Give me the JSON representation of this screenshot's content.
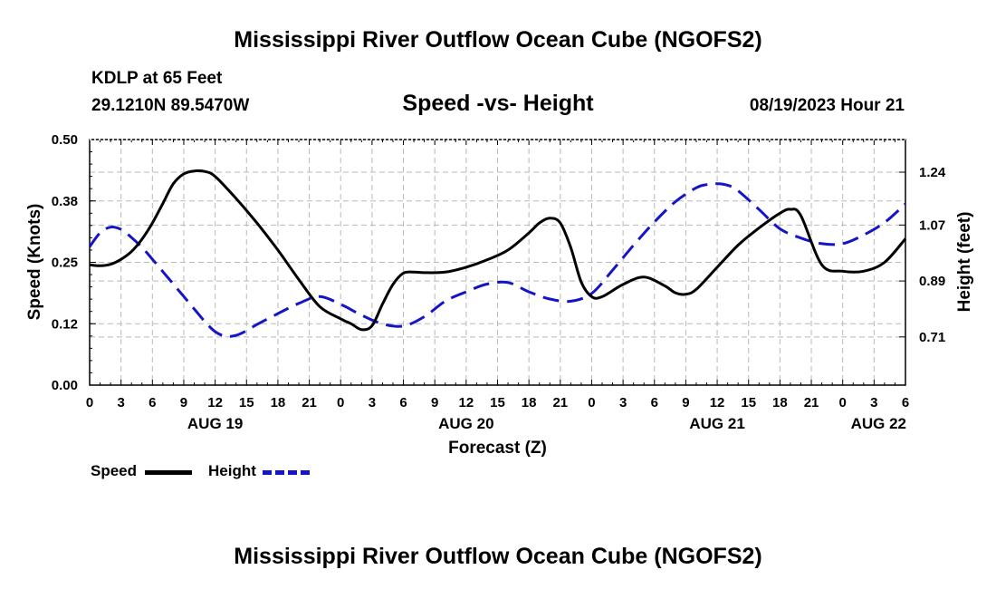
{
  "page": {
    "title": "Mississippi River Outflow Ocean Cube (NGOFS2)",
    "station_line": "KDLP at 65 Feet",
    "coords_line": "29.1210N  89.5470W",
    "datetime": "08/19/2023 Hour 21",
    "footer_title": "Mississippi River Outflow Ocean Cube (NGOFS2)"
  },
  "colors": {
    "speed": "#000000",
    "height": "#1515c8",
    "grid": "#b8b8b8"
  },
  "chart_data": {
    "type": "line",
    "title": "Speed -vs- Height",
    "xlabel": "Forecast (Z)",
    "ylabel": "Speed (Knots)",
    "y2label": "Height (feet)",
    "x_unit": "forecast hour from AUG 19 00Z",
    "xlim": [
      0,
      78
    ],
    "ylim": [
      0.0,
      0.5
    ],
    "y2lim": [
      0.555,
      1.345
    ],
    "yticks": [
      {
        "v": 0.0,
        "label": "0.00"
      },
      {
        "v": 0.125,
        "label": "0.12"
      },
      {
        "v": 0.25,
        "label": "0.25"
      },
      {
        "v": 0.375,
        "label": "0.38"
      },
      {
        "v": 0.5,
        "label": "0.50"
      }
    ],
    "y2ticks": [
      {
        "v": 0.71,
        "label": "0.71"
      },
      {
        "v": 0.89,
        "label": "0.89"
      },
      {
        "v": 1.07,
        "label": "1.07"
      },
      {
        "v": 1.24,
        "label": "1.24"
      }
    ],
    "xticks": [
      {
        "v": 0,
        "label": "0"
      },
      {
        "v": 3,
        "label": "3"
      },
      {
        "v": 6,
        "label": "6"
      },
      {
        "v": 9,
        "label": "9"
      },
      {
        "v": 12,
        "label": "12"
      },
      {
        "v": 15,
        "label": "15"
      },
      {
        "v": 18,
        "label": "18"
      },
      {
        "v": 21,
        "label": "21"
      },
      {
        "v": 24,
        "label": "0"
      },
      {
        "v": 27,
        "label": "3"
      },
      {
        "v": 30,
        "label": "6"
      },
      {
        "v": 33,
        "label": "9"
      },
      {
        "v": 36,
        "label": "12"
      },
      {
        "v": 39,
        "label": "15"
      },
      {
        "v": 42,
        "label": "18"
      },
      {
        "v": 45,
        "label": "21"
      },
      {
        "v": 48,
        "label": "0"
      },
      {
        "v": 51,
        "label": "3"
      },
      {
        "v": 54,
        "label": "6"
      },
      {
        "v": 57,
        "label": "9"
      },
      {
        "v": 60,
        "label": "12"
      },
      {
        "v": 63,
        "label": "15"
      },
      {
        "v": 66,
        "label": "18"
      },
      {
        "v": 69,
        "label": "21"
      },
      {
        "v": 72,
        "label": "0"
      },
      {
        "v": 75,
        "label": "3"
      },
      {
        "v": 78,
        "label": "6"
      }
    ],
    "day_labels": [
      {
        "v": 12,
        "label": "AUG 19"
      },
      {
        "v": 36,
        "label": "AUG 20"
      },
      {
        "v": 60,
        "label": "AUG 21"
      },
      {
        "v": 78,
        "label": "AUG 22"
      }
    ],
    "series": [
      {
        "name": "Speed",
        "axis": "left",
        "style": "solid",
        "x": [
          0,
          1,
          2,
          3,
          4,
          5,
          6,
          7,
          8,
          9,
          10,
          11,
          12,
          14,
          16,
          18,
          20,
          22,
          24,
          25,
          26,
          27,
          28,
          29,
          30,
          31,
          32,
          34,
          36,
          38,
          40,
          42,
          43,
          44,
          45,
          46,
          47,
          48,
          49,
          51,
          53,
          55,
          56,
          57,
          58,
          60,
          62,
          64,
          66,
          67,
          68,
          70,
          72,
          74,
          76,
          78
        ],
        "values": [
          0.245,
          0.243,
          0.246,
          0.256,
          0.272,
          0.297,
          0.33,
          0.37,
          0.41,
          0.43,
          0.436,
          0.435,
          0.425,
          0.38,
          0.33,
          0.275,
          0.215,
          0.16,
          0.135,
          0.125,
          0.113,
          0.121,
          0.165,
          0.205,
          0.228,
          0.23,
          0.229,
          0.23,
          0.24,
          0.255,
          0.275,
          0.31,
          0.33,
          0.34,
          0.33,
          0.28,
          0.21,
          0.18,
          0.18,
          0.205,
          0.22,
          0.202,
          0.188,
          0.185,
          0.195,
          0.24,
          0.285,
          0.32,
          0.35,
          0.358,
          0.345,
          0.245,
          0.232,
          0.232,
          0.25,
          0.298
        ]
      },
      {
        "name": "Height",
        "axis": "right",
        "style": "dashed",
        "x": [
          0,
          1,
          2,
          3,
          4,
          5,
          6,
          7,
          8,
          9,
          10,
          11,
          12,
          13,
          14,
          15,
          16,
          18,
          20,
          22,
          24,
          26,
          28,
          30,
          32,
          34,
          36,
          38,
          40,
          42,
          44,
          46,
          48,
          50,
          52,
          54,
          56,
          58,
          59,
          60,
          61,
          62,
          64,
          66,
          68,
          70,
          72,
          74,
          76,
          78
        ],
        "values": [
          1.0,
          1.045,
          1.063,
          1.056,
          1.03,
          0.998,
          0.96,
          0.92,
          0.88,
          0.84,
          0.8,
          0.76,
          0.727,
          0.712,
          0.715,
          0.73,
          0.75,
          0.785,
          0.818,
          0.84,
          0.815,
          0.78,
          0.752,
          0.745,
          0.775,
          0.825,
          0.855,
          0.88,
          0.885,
          0.855,
          0.832,
          0.825,
          0.85,
          0.925,
          1.005,
          1.08,
          1.145,
          1.19,
          1.2,
          1.203,
          1.198,
          1.18,
          1.12,
          1.058,
          1.028,
          1.01,
          1.01,
          1.038,
          1.078,
          1.138
        ]
      }
    ],
    "legend": [
      {
        "name": "Speed",
        "style": "solid"
      },
      {
        "name": "Height",
        "style": "dashed"
      }
    ]
  }
}
